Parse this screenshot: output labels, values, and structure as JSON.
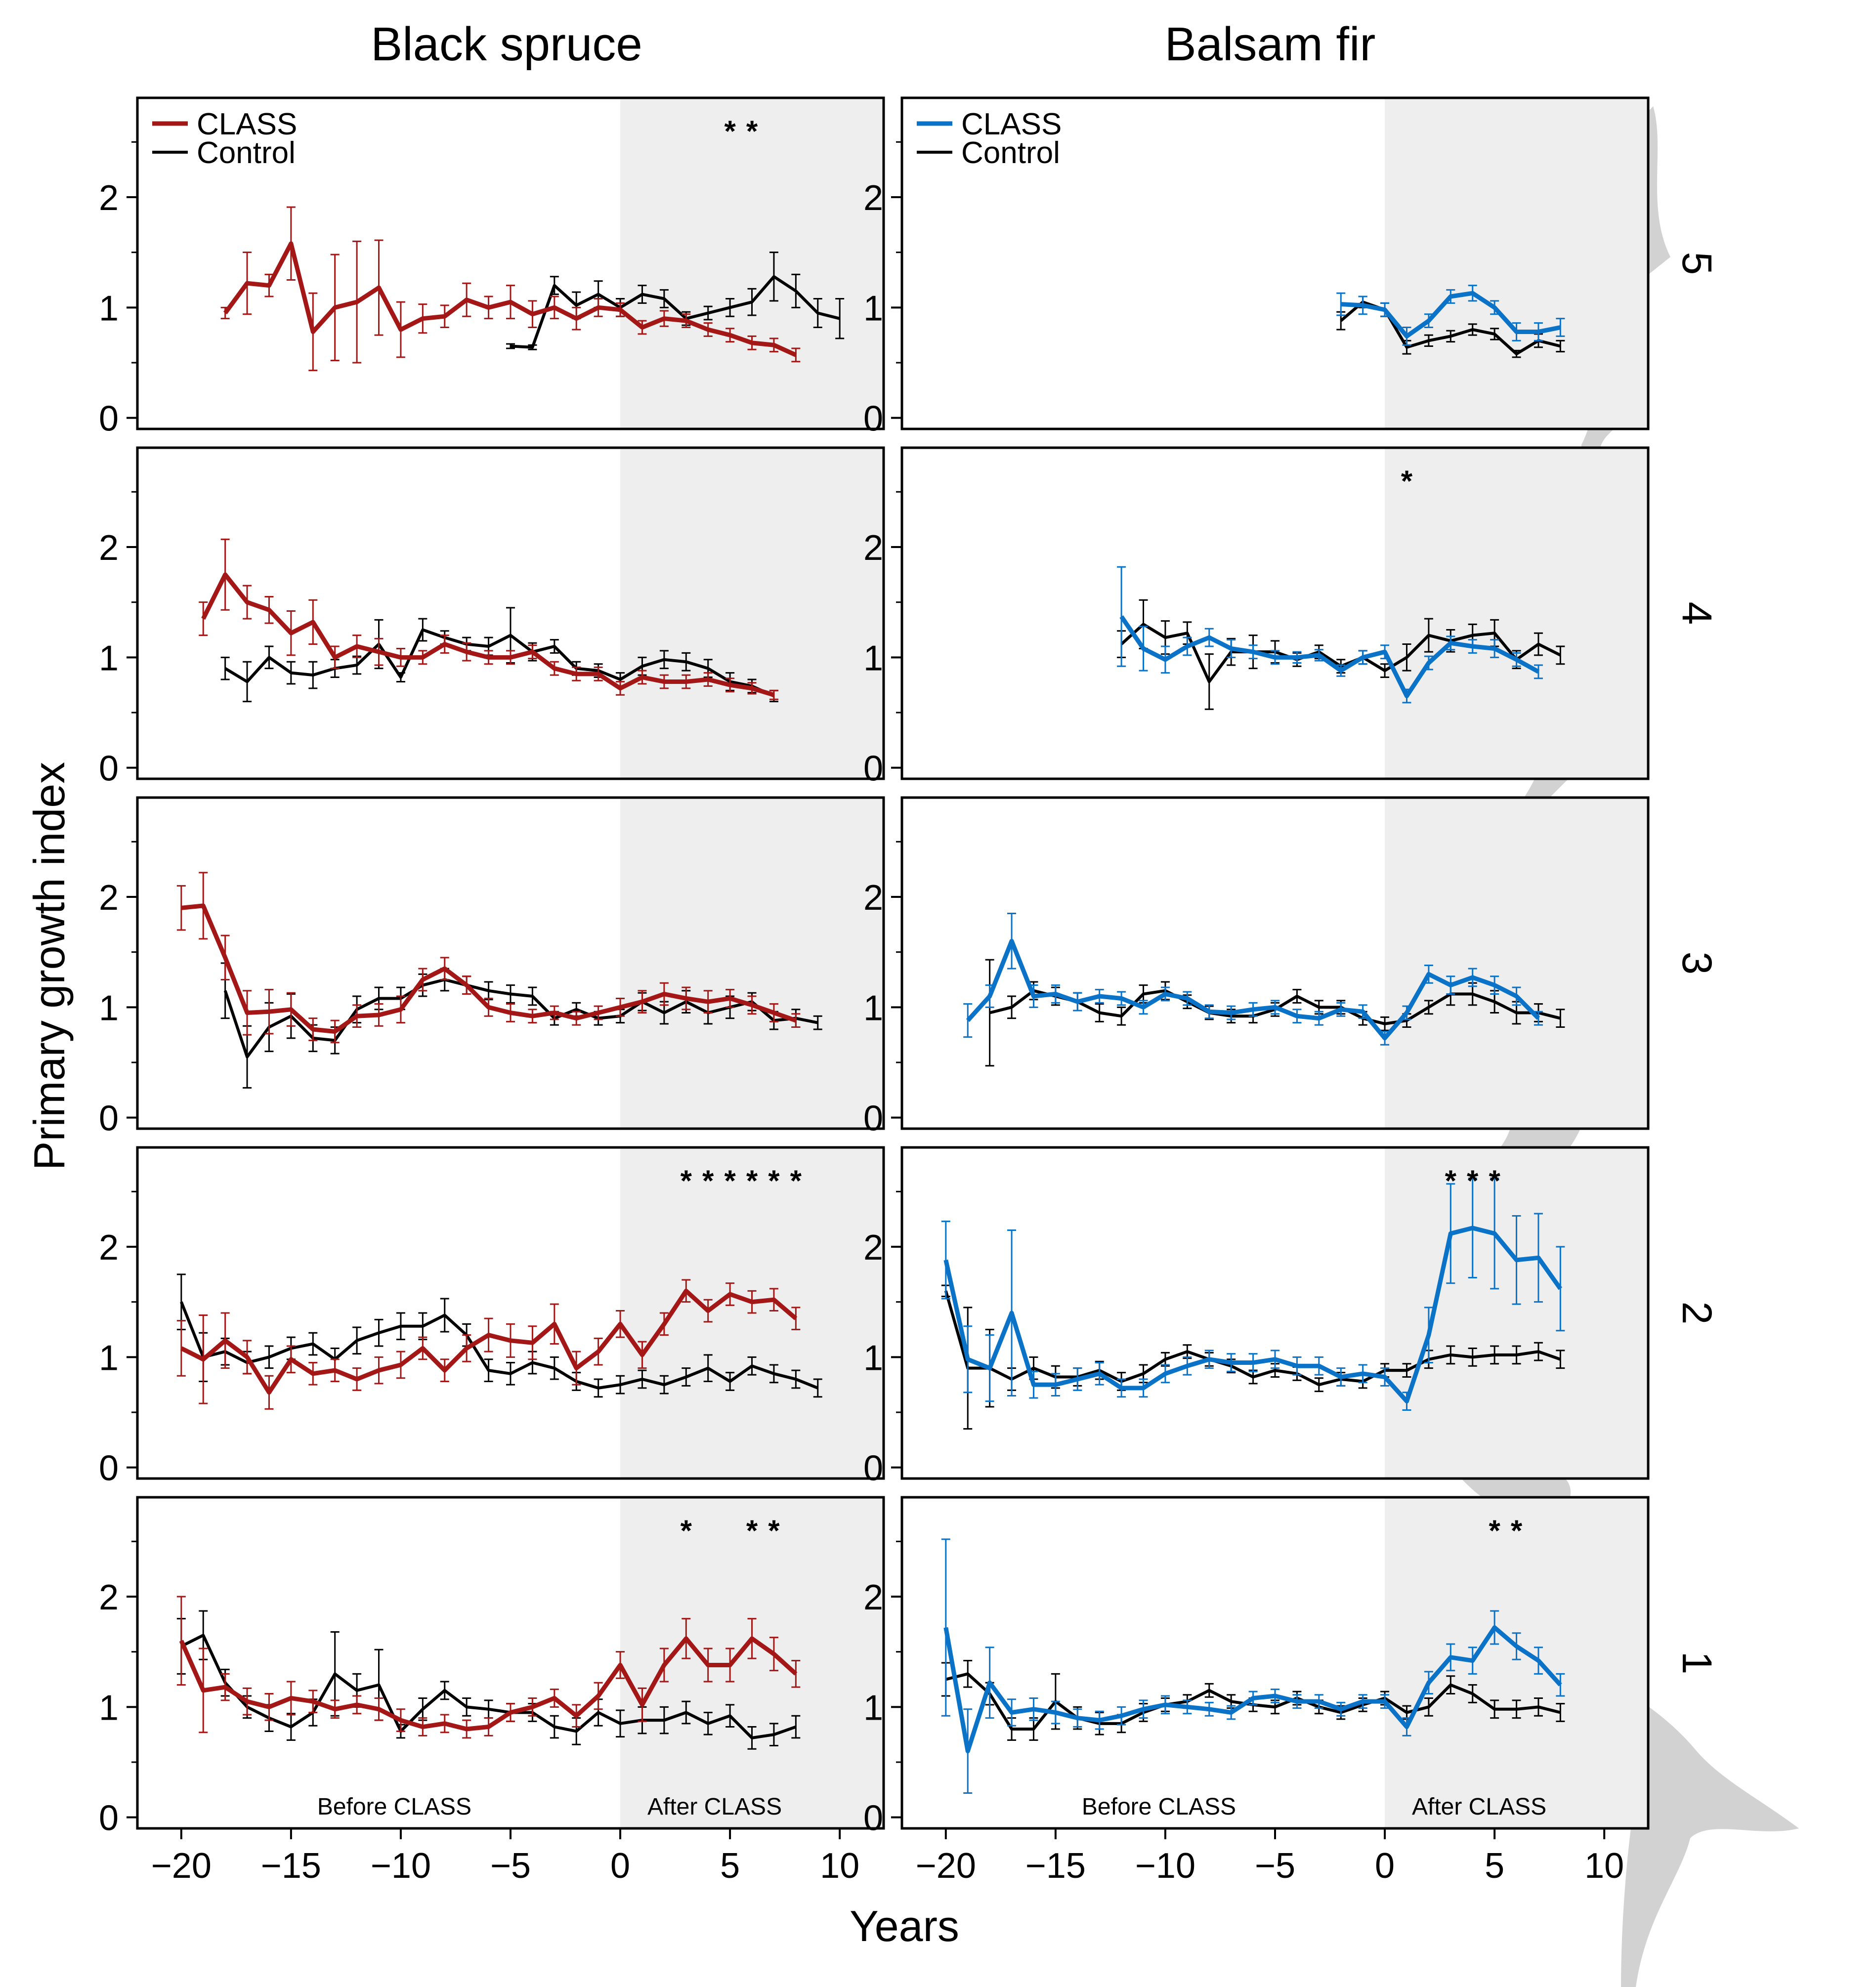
{
  "colors": {
    "spruce": "#a31717",
    "fir": "#0a73c8",
    "control": "#000000",
    "shade": "#eeeeee",
    "tree": "#d2d2d2"
  },
  "labels": {
    "col_left": "Black spruce",
    "col_right": "Balsam fir",
    "ylabel": "Primary growth index",
    "xlabel": "Years",
    "before": "Before CLASS",
    "after": "After CLASS",
    "legend_class": "CLASS",
    "legend_control": "Control",
    "row_labels": [
      "5",
      "4",
      "3",
      "2",
      "1"
    ]
  },
  "chart_data": {
    "type": "line",
    "xlim": [
      -22,
      12
    ],
    "ylim": [
      -0.1,
      2.9
    ],
    "x_ticks": [
      -20,
      -15,
      -10,
      -5,
      0,
      5,
      10
    ],
    "x_tick_labels": [
      "−20",
      "−15",
      "−10",
      "−5",
      "0",
      "5",
      "10"
    ],
    "y_ticks": [
      0,
      1,
      2
    ],
    "y_tick_labels": [
      "0",
      "1",
      "2"
    ],
    "panels": [
      {
        "species": "Black spruce",
        "row": "5",
        "sig_x": [
          5,
          6
        ],
        "class_x0": -18,
        "class": [
          0.95,
          1.22,
          1.2,
          1.58,
          0.78,
          1.0,
          1.05,
          1.18,
          0.8,
          0.9,
          0.92,
          1.07,
          1.0,
          1.05,
          0.94,
          1.0,
          0.9,
          1.0,
          0.98,
          0.82,
          0.9,
          0.88,
          0.8,
          0.75,
          0.68,
          0.66,
          0.57
        ],
        "class_err": [
          0.05,
          0.28,
          0.1,
          0.33,
          0.35,
          0.48,
          0.55,
          0.43,
          0.25,
          0.13,
          0.1,
          0.15,
          0.1,
          0.15,
          0.12,
          0.1,
          0.1,
          0.08,
          0.06,
          0.06,
          0.07,
          0.06,
          0.06,
          0.06,
          0.06,
          0.06,
          0.06
        ],
        "control_x0": -5,
        "control": [
          0.65,
          0.64,
          1.2,
          1.02,
          1.12,
          1.0,
          1.12,
          1.08,
          0.9,
          0.95,
          1.0,
          1.05,
          1.28,
          1.15,
          0.95,
          0.9
        ],
        "control_err": [
          0.02,
          0.02,
          0.08,
          0.12,
          0.12,
          0.08,
          0.08,
          0.08,
          0.06,
          0.06,
          0.08,
          0.12,
          0.22,
          0.15,
          0.13,
          0.18
        ]
      },
      {
        "species": "Balsam fir",
        "row": "5",
        "sig_x": [],
        "class_x0": -2,
        "class": [
          1.03,
          1.02,
          0.98,
          0.74,
          0.88,
          1.1,
          1.13,
          1.0,
          0.78,
          0.78,
          0.82
        ],
        "class_err": [
          0.1,
          0.08,
          0.06,
          0.08,
          0.06,
          0.06,
          0.07,
          0.06,
          0.08,
          0.08,
          0.08
        ],
        "control_x0": -2,
        "control": [
          0.88,
          1.05,
          0.98,
          0.64,
          0.7,
          0.74,
          0.8,
          0.76,
          0.58,
          0.7,
          0.65
        ],
        "control_err": [
          0.08,
          0.05,
          0.06,
          0.06,
          0.05,
          0.05,
          0.05,
          0.05,
          0.03,
          0.06,
          0.05
        ]
      },
      {
        "species": "Black spruce",
        "row": "4",
        "sig_x": [],
        "class_x0": -19,
        "class": [
          1.35,
          1.75,
          1.5,
          1.43,
          1.22,
          1.32,
          1.0,
          1.1,
          1.05,
          1.0,
          1.0,
          1.12,
          1.05,
          1.0,
          1.0,
          1.05,
          0.9,
          0.85,
          0.85,
          0.72,
          0.82,
          0.78,
          0.78,
          0.8,
          0.75,
          0.72,
          0.66
        ],
        "class_err": [
          0.15,
          0.32,
          0.15,
          0.12,
          0.2,
          0.2,
          0.1,
          0.1,
          0.12,
          0.08,
          0.06,
          0.08,
          0.08,
          0.06,
          0.06,
          0.06,
          0.06,
          0.06,
          0.06,
          0.06,
          0.06,
          0.06,
          0.06,
          0.06,
          0.06,
          0.05,
          0.04
        ],
        "control_x0": -18,
        "control": [
          0.9,
          0.78,
          1.0,
          0.86,
          0.84,
          0.9,
          0.93,
          1.12,
          0.82,
          1.25,
          1.18,
          1.12,
          1.1,
          1.2,
          1.05,
          1.1,
          0.9,
          0.88,
          0.8,
          0.92,
          0.98,
          0.96,
          0.9,
          0.78,
          0.74,
          0.65
        ],
        "control_err": [
          0.1,
          0.18,
          0.1,
          0.1,
          0.12,
          0.08,
          0.08,
          0.22,
          0.04,
          0.1,
          0.06,
          0.06,
          0.08,
          0.25,
          0.08,
          0.06,
          0.06,
          0.06,
          0.06,
          0.08,
          0.08,
          0.08,
          0.08,
          0.08,
          0.06,
          0.05
        ]
      },
      {
        "species": "Balsam fir",
        "row": "4",
        "sig_x": [
          1
        ],
        "class_x0": -12,
        "class": [
          1.37,
          1.08,
          0.98,
          1.1,
          1.18,
          1.08,
          1.05,
          1.0,
          1.0,
          1.02,
          0.88,
          1.0,
          1.05,
          0.65,
          0.95,
          1.13,
          1.1,
          1.08,
          0.98,
          0.87
        ],
        "class_err": [
          0.45,
          0.2,
          0.12,
          0.08,
          0.08,
          0.08,
          0.06,
          0.06,
          0.05,
          0.05,
          0.05,
          0.06,
          0.06,
          0.06,
          0.06,
          0.06,
          0.06,
          0.08,
          0.06,
          0.06
        ],
        "control_x0": -12,
        "control": [
          1.12,
          1.3,
          1.18,
          1.22,
          0.78,
          1.05,
          1.05,
          1.05,
          0.98,
          1.05,
          0.92,
          1.0,
          0.88,
          1.0,
          1.2,
          1.15,
          1.2,
          1.22,
          0.98,
          1.12,
          1.02
        ],
        "control_err": [
          0.12,
          0.22,
          0.15,
          0.1,
          0.25,
          0.12,
          0.15,
          0.1,
          0.06,
          0.06,
          0.06,
          0.06,
          0.06,
          0.12,
          0.15,
          0.1,
          0.1,
          0.12,
          0.08,
          0.1,
          0.08
        ]
      },
      {
        "species": "Black spruce",
        "row": "3",
        "sig_x": [],
        "class_x0": -20,
        "class": [
          1.9,
          1.92,
          1.45,
          0.95,
          0.96,
          0.98,
          0.8,
          0.78,
          0.92,
          0.93,
          0.98,
          1.25,
          1.35,
          1.2,
          1.0,
          0.95,
          0.92,
          0.95,
          0.9,
          0.95,
          1.0,
          1.05,
          1.12,
          1.08,
          1.05,
          1.08,
          1.02,
          0.95,
          0.88
        ],
        "class_err": [
          0.2,
          0.3,
          0.2,
          0.2,
          0.2,
          0.15,
          0.1,
          0.1,
          0.1,
          0.1,
          0.12,
          0.1,
          0.1,
          0.08,
          0.08,
          0.08,
          0.06,
          0.06,
          0.06,
          0.06,
          0.08,
          0.1,
          0.1,
          0.1,
          0.1,
          0.08,
          0.08,
          0.08,
          0.06
        ],
        "control_x0": -18,
        "control": [
          1.15,
          0.55,
          0.82,
          0.92,
          0.72,
          0.7,
          0.98,
          1.08,
          1.08,
          1.2,
          1.25,
          1.2,
          1.15,
          1.12,
          1.1,
          0.9,
          0.98,
          0.9,
          0.92,
          1.05,
          0.95,
          1.05,
          0.95,
          1.0,
          1.05,
          0.88,
          0.9,
          0.86
        ],
        "control_err": [
          0.25,
          0.28,
          0.22,
          0.2,
          0.12,
          0.12,
          0.12,
          0.1,
          0.1,
          0.1,
          0.1,
          0.08,
          0.08,
          0.08,
          0.08,
          0.06,
          0.06,
          0.06,
          0.06,
          0.08,
          0.1,
          0.1,
          0.1,
          0.1,
          0.08,
          0.08,
          0.08,
          0.06
        ]
      },
      {
        "species": "Balsam fir",
        "row": "3",
        "sig_x": [],
        "class_x0": -19,
        "class": [
          0.88,
          1.1,
          1.6,
          1.1,
          1.12,
          1.05,
          1.1,
          1.08,
          1.0,
          1.12,
          1.08,
          0.96,
          0.95,
          0.98,
          1.0,
          0.92,
          0.9,
          0.98,
          0.96,
          0.72,
          0.95,
          1.3,
          1.2,
          1.27,
          1.2,
          1.1,
          0.9
        ],
        "class_err": [
          0.15,
          0.1,
          0.25,
          0.1,
          0.08,
          0.08,
          0.06,
          0.06,
          0.06,
          0.06,
          0.06,
          0.06,
          0.06,
          0.06,
          0.06,
          0.06,
          0.06,
          0.06,
          0.06,
          0.06,
          0.06,
          0.08,
          0.08,
          0.08,
          0.08,
          0.08,
          0.06
        ],
        "control_x0": -18,
        "control": [
          0.95,
          1.0,
          1.15,
          1.1,
          1.05,
          0.95,
          0.92,
          1.12,
          1.15,
          1.05,
          0.95,
          0.92,
          0.92,
          0.98,
          1.1,
          1.0,
          1.0,
          0.9,
          0.85,
          0.88,
          1.0,
          1.12,
          1.12,
          1.05,
          0.95,
          0.95,
          0.9
        ],
        "control_err": [
          0.48,
          0.1,
          0.08,
          0.08,
          0.08,
          0.08,
          0.08,
          0.08,
          0.08,
          0.06,
          0.06,
          0.06,
          0.06,
          0.06,
          0.06,
          0.06,
          0.06,
          0.06,
          0.06,
          0.06,
          0.06,
          0.1,
          0.1,
          0.1,
          0.1,
          0.08,
          0.08
        ]
      },
      {
        "species": "Black spruce",
        "row": "2",
        "sig_x": [
          3,
          4,
          5,
          6,
          7,
          8
        ],
        "class_x0": -20,
        "class": [
          1.08,
          0.98,
          1.15,
          1.0,
          0.68,
          0.98,
          0.85,
          0.88,
          0.8,
          0.88,
          0.93,
          1.08,
          0.88,
          1.08,
          1.2,
          1.15,
          1.13,
          1.3,
          0.9,
          1.05,
          1.3,
          1.02,
          1.3,
          1.6,
          1.42,
          1.57,
          1.5,
          1.52,
          1.35
        ],
        "class_err": [
          0.25,
          0.4,
          0.25,
          0.15,
          0.15,
          0.12,
          0.1,
          0.1,
          0.1,
          0.12,
          0.12,
          0.1,
          0.1,
          0.12,
          0.15,
          0.15,
          0.15,
          0.18,
          0.15,
          0.12,
          0.12,
          0.12,
          0.1,
          0.1,
          0.1,
          0.1,
          0.1,
          0.1,
          0.1
        ],
        "control_x0": -20,
        "control": [
          1.5,
          1.0,
          1.05,
          0.95,
          1.0,
          1.08,
          1.12,
          0.98,
          1.15,
          1.22,
          1.28,
          1.28,
          1.38,
          1.2,
          0.88,
          0.85,
          0.95,
          0.9,
          0.78,
          0.72,
          0.75,
          0.8,
          0.75,
          0.82,
          0.9,
          0.78,
          0.92,
          0.85,
          0.8,
          0.72
        ],
        "control_err": [
          0.25,
          0.22,
          0.12,
          0.1,
          0.1,
          0.1,
          0.1,
          0.1,
          0.12,
          0.12,
          0.12,
          0.12,
          0.15,
          0.1,
          0.1,
          0.1,
          0.1,
          0.1,
          0.08,
          0.08,
          0.08,
          0.08,
          0.08,
          0.08,
          0.12,
          0.08,
          0.08,
          0.08,
          0.08,
          0.08
        ],
        "control_x_shift": -1
      },
      {
        "species": "Balsam fir",
        "row": "2",
        "sig_x": [
          3,
          4,
          5
        ],
        "class_x0": -20,
        "class": [
          1.88,
          0.98,
          0.9,
          1.4,
          0.75,
          0.75,
          0.8,
          0.85,
          0.72,
          0.72,
          0.85,
          0.92,
          0.98,
          0.95,
          0.95,
          0.98,
          0.92,
          0.92,
          0.82,
          0.85,
          0.82,
          0.6,
          1.2,
          2.12,
          2.17,
          2.12,
          1.88,
          1.9,
          1.62
        ],
        "class_err": [
          0.35,
          0.3,
          0.3,
          0.75,
          0.12,
          0.1,
          0.1,
          0.1,
          0.08,
          0.08,
          0.08,
          0.08,
          0.08,
          0.08,
          0.08,
          0.08,
          0.08,
          0.08,
          0.08,
          0.08,
          0.08,
          0.08,
          0.25,
          0.45,
          0.45,
          0.5,
          0.4,
          0.4,
          0.38
        ],
        "control_x0": -20,
        "control": [
          1.6,
          0.9,
          0.9,
          0.8,
          0.9,
          0.82,
          0.82,
          0.88,
          0.78,
          0.85,
          0.98,
          1.05,
          0.98,
          0.92,
          0.82,
          0.88,
          0.85,
          0.75,
          0.8,
          0.78,
          0.88,
          0.88,
          0.98,
          1.02,
          1.0,
          1.02,
          1.02,
          1.05,
          0.98
        ],
        "control_err": [
          0.05,
          0.55,
          0.35,
          0.1,
          0.1,
          0.1,
          0.08,
          0.08,
          0.08,
          0.08,
          0.06,
          0.06,
          0.06,
          0.06,
          0.06,
          0.06,
          0.06,
          0.06,
          0.06,
          0.06,
          0.06,
          0.06,
          0.08,
          0.08,
          0.08,
          0.08,
          0.08,
          0.08,
          0.08
        ]
      },
      {
        "species": "Black spruce",
        "row": "1",
        "sig_x": [
          3,
          6,
          7
        ],
        "class_x0": -20,
        "class": [
          1.6,
          1.15,
          1.18,
          1.05,
          1.0,
          1.08,
          1.05,
          0.98,
          1.02,
          0.98,
          0.88,
          0.82,
          0.85,
          0.8,
          0.82,
          0.95,
          1.0,
          1.08,
          0.92,
          1.1,
          1.38,
          1.02,
          1.38,
          1.62,
          1.38,
          1.38,
          1.62,
          1.48,
          1.3
        ],
        "class_err": [
          0.4,
          0.38,
          0.12,
          0.12,
          0.12,
          0.15,
          0.1,
          0.08,
          0.08,
          0.1,
          0.1,
          0.08,
          0.08,
          0.08,
          0.08,
          0.08,
          0.08,
          0.08,
          0.1,
          0.12,
          0.12,
          0.15,
          0.15,
          0.18,
          0.15,
          0.15,
          0.18,
          0.15,
          0.12
        ],
        "control_x0": -20,
        "control": [
          1.55,
          1.65,
          1.22,
          1.0,
          0.9,
          0.82,
          0.95,
          1.3,
          1.15,
          1.2,
          0.78,
          0.98,
          1.15,
          1.0,
          0.98,
          0.95,
          0.95,
          0.82,
          0.78,
          0.95,
          0.85,
          0.88,
          0.88,
          0.95,
          0.85,
          0.92,
          0.72,
          0.75,
          0.82
        ],
        "control_err": [
          0.25,
          0.22,
          0.12,
          0.1,
          0.12,
          0.12,
          0.12,
          0.38,
          0.15,
          0.32,
          0.06,
          0.1,
          0.08,
          0.08,
          0.08,
          0.08,
          0.08,
          0.1,
          0.12,
          0.12,
          0.12,
          0.12,
          0.12,
          0.1,
          0.1,
          0.1,
          0.1,
          0.1,
          0.1
        ]
      },
      {
        "species": "Balsam fir",
        "row": "1",
        "sig_x": [
          5,
          6
        ],
        "class_x0": -20,
        "class": [
          1.72,
          0.6,
          1.22,
          0.95,
          0.98,
          0.95,
          0.9,
          0.88,
          0.92,
          0.98,
          1.02,
          1.0,
          0.98,
          0.95,
          1.08,
          1.1,
          1.05,
          1.05,
          0.98,
          1.05,
          1.05,
          0.82,
          1.22,
          1.45,
          1.42,
          1.72,
          1.55,
          1.42,
          1.2
        ],
        "class_err": [
          0.8,
          0.38,
          0.32,
          0.12,
          0.1,
          0.1,
          0.08,
          0.08,
          0.08,
          0.08,
          0.08,
          0.06,
          0.06,
          0.06,
          0.06,
          0.06,
          0.06,
          0.06,
          0.06,
          0.06,
          0.06,
          0.08,
          0.1,
          0.12,
          0.12,
          0.15,
          0.12,
          0.12,
          0.1
        ],
        "control_x0": -20,
        "control": [
          1.25,
          1.3,
          1.12,
          0.8,
          0.8,
          1.05,
          0.9,
          0.85,
          0.85,
          0.95,
          1.02,
          1.05,
          1.15,
          1.05,
          1.02,
          1.0,
          1.08,
          1.0,
          0.95,
          1.02,
          1.08,
          0.95,
          1.0,
          1.2,
          1.12,
          0.98,
          0.98,
          1.0,
          0.95
        ],
        "control_err": [
          0.15,
          0.12,
          0.1,
          0.1,
          0.1,
          0.25,
          0.1,
          0.1,
          0.08,
          0.08,
          0.06,
          0.06,
          0.06,
          0.06,
          0.06,
          0.06,
          0.06,
          0.06,
          0.06,
          0.06,
          0.06,
          0.06,
          0.08,
          0.08,
          0.08,
          0.08,
          0.08,
          0.08,
          0.08
        ]
      }
    ]
  }
}
